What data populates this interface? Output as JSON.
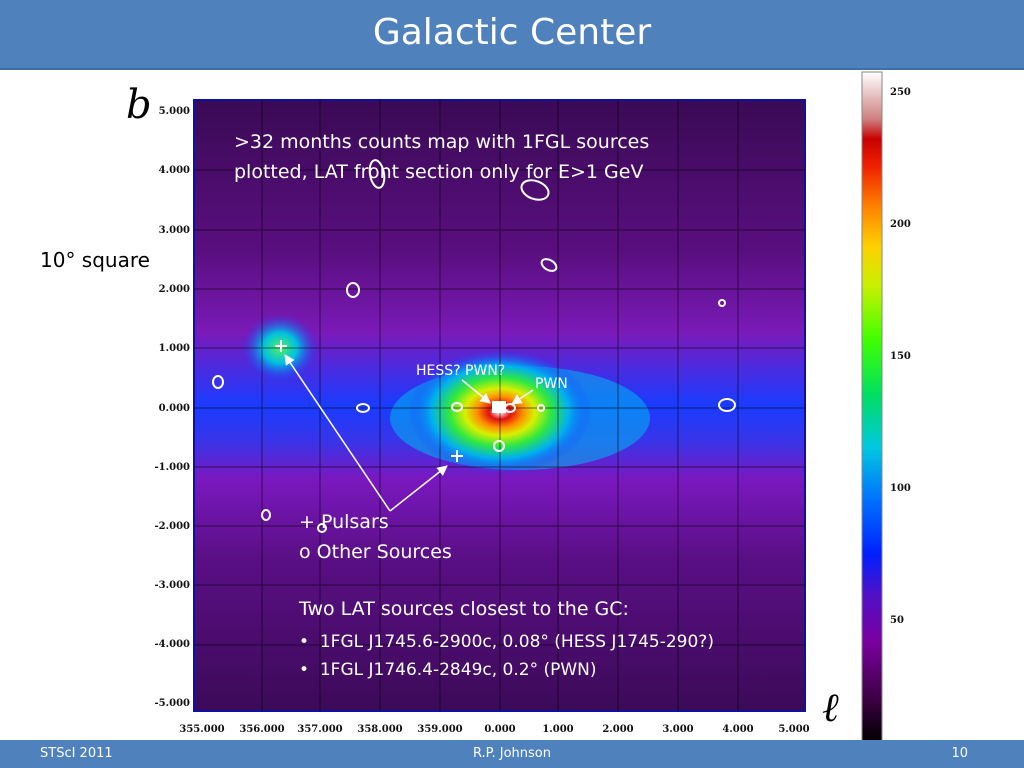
{
  "slide": {
    "title": "Galactic Center"
  },
  "footer": {
    "left": "STScI 2011",
    "center": "R.P. Johnson",
    "page": "10"
  },
  "axes": {
    "b_symbol": "b",
    "l_symbol": "ℓ",
    "y_ticks": [
      "5.000",
      "4.000",
      "3.000",
      "2.000",
      "1.000",
      "0.000",
      "-1.000",
      "-2.000",
      "-3.000",
      "-4.000",
      "-5.000"
    ],
    "x_ticks": [
      "355.000",
      "356.000",
      "357.000",
      "358.000",
      "359.000",
      "0.000",
      "1.000",
      "2.000",
      "3.000",
      "4.000",
      "5.000"
    ]
  },
  "colorbar": {
    "ticks": [
      "250",
      "200",
      "150",
      "100",
      "50"
    ],
    "tick_values": [
      250,
      200,
      150,
      100,
      50
    ],
    "range": [
      0,
      262
    ]
  },
  "annotations": {
    "square": "10° square",
    "description_line1": ">32 months counts map with 1FGL sources",
    "description_line2": "plotted, LAT front section only for E>1 GeV",
    "hess_label": "HESS? PWN?",
    "pwn_label": "PWN",
    "legend_pulsars": "+ Pulsars",
    "legend_other": "o Other Sources",
    "closest_heading": "Two LAT sources closest to the GC:",
    "closest_items": [
      "1FGL J1745.6-2900c, 0.08° (HESS J1745-290?)",
      "1FGL J1746.4-2849c, 0.2° (PWN)"
    ]
  }
}
